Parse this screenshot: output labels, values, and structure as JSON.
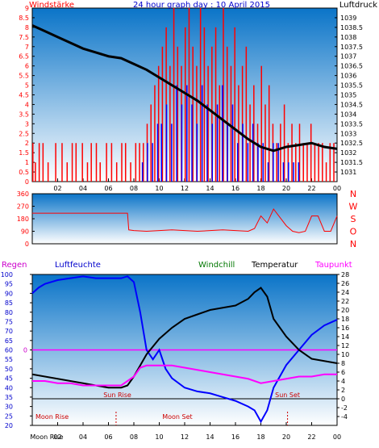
{
  "header": {
    "left_label": "Windstärke",
    "title": "24 hour graph day : 10 April 2015",
    "right_label": "Luftdruck"
  },
  "colors": {
    "panel_top": "#0a74c8",
    "panel_bottom": "#ffffff",
    "wind_gust": "#ff0000",
    "wind_avg": "#0000ff",
    "pressure": "#000000",
    "direction": "#ff0000",
    "humidity": "#0000ff",
    "temperature": "#000000",
    "windchill": "#007700",
    "dewpoint": "#ff00ff",
    "sun_line": "#ff00ff",
    "moon_text": "#cc0000"
  },
  "chart_data": [
    {
      "type": "bar",
      "id": "wind",
      "title": "24 hour graph day : 10 April 2015",
      "ylabel_left": "Windstärke",
      "ylabel_right": "Luftdruck",
      "x_ticks": [
        "02",
        "04",
        "06",
        "08",
        "10",
        "12",
        "14",
        "16",
        "18",
        "20",
        "22",
        "00"
      ],
      "xlim": [
        0,
        24
      ],
      "ylim_left": [
        0,
        9
      ],
      "y_ticks_left": [
        "0",
        "0.5",
        "1",
        "1.5",
        "2",
        "2.5",
        "3",
        "3.5",
        "4",
        "4.5",
        "5",
        "5.5",
        "6",
        "6.5",
        "7",
        "7.5",
        "8",
        "8.5",
        "9"
      ],
      "ylim_right": [
        1030.5,
        1039.5
      ],
      "y_ticks_right": [
        "1031",
        "1031.5",
        "1032",
        "1032.5",
        "1033",
        "1033.5",
        "1034",
        "1034.5",
        "1035",
        "1035.5",
        "1036",
        "1036.5",
        "1037",
        "1037.5",
        "1038",
        "1038.5",
        "1039"
      ],
      "series": [
        {
          "key": "gust",
          "x": [
            0.0,
            0.2,
            0.5,
            0.8,
            1.2,
            1.8,
            2.3,
            2.7,
            3.1,
            3.4,
            3.9,
            4.3,
            4.6,
            5.0,
            5.3,
            5.8,
            6.2,
            6.6,
            7.0,
            7.3,
            7.7,
            8.1,
            8.4,
            8.7,
            9.0,
            9.3,
            9.6,
            9.9,
            10.2,
            10.5,
            10.8,
            11.1,
            11.4,
            11.7,
            12.0,
            12.3,
            12.6,
            12.9,
            13.2,
            13.5,
            13.8,
            14.1,
            14.4,
            14.7,
            15.0,
            15.3,
            15.6,
            15.9,
            16.2,
            16.5,
            16.8,
            17.1,
            17.4,
            17.7,
            18.0,
            18.3,
            18.6,
            18.9,
            19.2,
            19.5,
            19.8,
            20.1,
            20.4,
            20.7,
            21.0,
            21.3,
            21.6,
            21.9,
            22.2,
            22.5,
            22.8,
            23.1,
            23.4,
            23.7
          ],
          "values": [
            2,
            1,
            2,
            2,
            1,
            2,
            2,
            1,
            2,
            2,
            2,
            1,
            2,
            2,
            1,
            2,
            2,
            1,
            2,
            2,
            1,
            2,
            2,
            2,
            3,
            4,
            5,
            6,
            7,
            8,
            6,
            9,
            7,
            6,
            8,
            9,
            7,
            6,
            9,
            8,
            6,
            7,
            8,
            5,
            9,
            7,
            6,
            8,
            5,
            6,
            7,
            4,
            5,
            3,
            6,
            4,
            5,
            3,
            2,
            3,
            4,
            2,
            3,
            2,
            3,
            2,
            2,
            3,
            2,
            2,
            2,
            1,
            2,
            2
          ]
        },
        {
          "key": "average",
          "x": [
            8.5,
            8.9,
            9.3,
            9.7,
            10.0,
            10.4,
            10.8,
            11.2,
            11.6,
            12.0,
            12.4,
            12.8,
            13.2,
            13.6,
            14.0,
            14.4,
            14.8,
            15.2,
            15.6,
            16.0,
            16.4,
            16.8,
            17.2,
            17.6,
            18.0,
            18.4,
            18.8,
            19.2,
            19.6,
            20.0,
            20.4,
            20.8
          ],
          "values": [
            1,
            2,
            2,
            3,
            3,
            4,
            3,
            5,
            4,
            5,
            4,
            3,
            5,
            4,
            3,
            4,
            5,
            3,
            4,
            2,
            3,
            2,
            3,
            2,
            2,
            1,
            2,
            2,
            1,
            1,
            1,
            1
          ]
        },
        {
          "key": "pressure",
          "x": [
            0,
            1,
            2,
            3,
            4,
            5,
            6,
            7,
            8,
            9,
            10,
            11,
            12,
            13,
            14,
            15,
            16,
            17,
            18,
            19,
            20,
            21,
            22,
            23,
            24
          ],
          "values": [
            1038.6,
            1038.3,
            1038.0,
            1037.7,
            1037.4,
            1037.2,
            1037.0,
            1036.9,
            1036.6,
            1036.3,
            1035.9,
            1035.5,
            1035.1,
            1034.7,
            1034.2,
            1033.7,
            1033.2,
            1032.7,
            1032.3,
            1032.1,
            1032.3,
            1032.4,
            1032.5,
            1032.3,
            1032.2
          ]
        }
      ]
    },
    {
      "type": "line",
      "id": "direction",
      "xlim": [
        0,
        24
      ],
      "ylim": [
        0,
        360
      ],
      "y_ticks": [
        "0",
        "90",
        "180",
        "270",
        "360"
      ],
      "right_labels": [
        "N",
        "W",
        "S",
        "O",
        "N"
      ],
      "x": [
        0,
        7.5,
        7.6,
        8,
        9,
        10,
        11,
        12,
        13,
        14,
        15,
        16,
        17,
        17.5,
        18,
        18.5,
        19,
        19.5,
        20,
        20.5,
        21,
        21.5,
        22,
        22.5,
        23,
        23.5,
        24
      ],
      "values": [
        220,
        220,
        100,
        95,
        90,
        95,
        100,
        95,
        90,
        95,
        100,
        95,
        90,
        110,
        200,
        150,
        250,
        190,
        130,
        90,
        80,
        90,
        200,
        200,
        90,
        90,
        200
      ]
    },
    {
      "type": "line",
      "id": "temperature",
      "labels": {
        "regen": "Regen",
        "humidity": "Luftfeuchte",
        "windchill": "Windchill",
        "temperature": "Temperatur",
        "dewpoint": "Taupunkt"
      },
      "x_ticks": [
        "02",
        "04",
        "06",
        "08",
        "10",
        "12",
        "14",
        "16",
        "18",
        "20",
        "22",
        "00"
      ],
      "x_first_tick": "Moon Rise",
      "xlim": [
        0,
        24
      ],
      "ylim_left": [
        20,
        100
      ],
      "y_ticks_left": [
        "20",
        "25",
        "30",
        "35",
        "40",
        "45",
        "50",
        "55",
        "60",
        "65",
        "70",
        "75",
        "80",
        "85",
        "90",
        "95",
        "100"
      ],
      "ylim_right": [
        -6,
        28
      ],
      "y_ticks_right": [
        "-4",
        "-2",
        "0",
        "2",
        "4",
        "6",
        "8",
        "10",
        "12",
        "14",
        "16",
        "18",
        "20",
        "22",
        "24",
        "26",
        "28"
      ],
      "rain_tick": "0",
      "events": {
        "sun_rise": "Sun Rise",
        "sun_set": "Sun Set",
        "moon_rise": "Moon Rise",
        "moon_set": "Moon Set"
      },
      "event_times": {
        "sun_rise": 6.7,
        "sun_set": 20.1,
        "moon_rise": 6.6,
        "moon_set": 9.6
      },
      "series": [
        {
          "key": "humidity",
          "x": [
            0,
            0.5,
            1,
            2,
            3,
            4,
            5,
            6,
            7,
            7.5,
            8,
            8.5,
            9,
            9.5,
            10,
            10.5,
            11,
            12,
            13,
            14,
            15,
            16,
            17,
            17.5,
            18,
            18.5,
            19,
            20,
            21,
            22,
            23,
            24
          ],
          "values": [
            90,
            93,
            95,
            97,
            98,
            99,
            98,
            98,
            98,
            99,
            96,
            80,
            60,
            55,
            60,
            50,
            45,
            40,
            38,
            37,
            35,
            33,
            30,
            28,
            22,
            28,
            40,
            52,
            60,
            68,
            73,
            76
          ]
        },
        {
          "key": "temperature",
          "x": [
            0,
            1,
            2,
            3,
            4,
            5,
            6,
            7,
            7.5,
            8,
            9,
            10,
            11,
            12,
            13,
            14,
            15,
            16,
            17,
            17.5,
            18,
            18.5,
            19,
            20,
            21,
            22,
            23,
            24
          ],
          "values": [
            5.5,
            5.0,
            4.5,
            4.0,
            3.5,
            3.0,
            2.5,
            2.5,
            3.0,
            5.0,
            10.0,
            13.5,
            16.0,
            18.0,
            19.0,
            20.0,
            20.5,
            21.0,
            22.5,
            24.0,
            25.0,
            23.0,
            18.0,
            14.0,
            11.0,
            9.0,
            8.5,
            8.0
          ]
        },
        {
          "key": "dewpoint",
          "x": [
            0,
            1,
            2,
            3,
            4,
            5,
            6,
            7,
            8,
            8.5,
            9,
            10,
            11,
            12,
            13,
            14,
            15,
            16,
            17,
            18,
            19,
            20,
            21,
            22,
            23,
            24
          ],
          "values": [
            4.0,
            4.0,
            3.5,
            3.5,
            3.0,
            3.0,
            3.0,
            3.0,
            5.0,
            7.0,
            7.5,
            7.5,
            7.5,
            7.0,
            6.5,
            6.0,
            5.5,
            5.0,
            4.5,
            3.5,
            4.0,
            4.5,
            5.0,
            5.0,
            5.5,
            5.5
          ]
        }
      ]
    }
  ]
}
